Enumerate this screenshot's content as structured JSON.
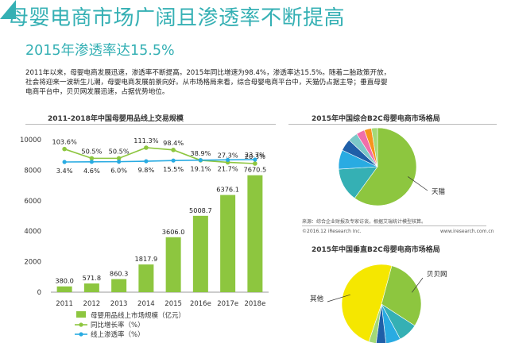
{
  "header": {
    "title": "母婴电商市场广阔且渗透率不断提高",
    "subtitle": "2015年渗透率达15.5%"
  },
  "body_text": [
    "2011年以来，母婴电商发展迅速，渗透率不断提高。2015年同比增速为98.4%，渗透率达15.5%。随着二胎政策开放，",
    "社会将迎来一波新生儿潮，母婴电商发展前景向好。从市场格局来看，综合母婴电商平台中，天猫仍占据主导；垂直母婴",
    "电商平台中，贝贝网发展迅速，占据优势地位。"
  ],
  "footer": {
    "source": "来源：综合企业财报及专家访谈，根据艾瑞统计模型核算。",
    "copyright": "©2016.12 iResearch Inc.",
    "website": "www.iresearch.com.cn"
  },
  "colors": {
    "bar": "#8dc63f",
    "growth": "#8dc63f",
    "penetration": "#29abe2",
    "title": "#35b0b4",
    "vertical_yellow": "#f5e700"
  },
  "chart_data": [
    {
      "type": "bar",
      "title": "2011-2018年中国母婴用品线上交易规模",
      "categories": [
        "2011",
        "2012",
        "2013",
        "2014",
        "2015",
        "2016e",
        "2017e",
        "2018e"
      ],
      "ylim": [
        0,
        10000
      ],
      "yticks": [
        "0",
        "2000",
        "4000",
        "6000",
        "8000",
        "10000"
      ],
      "grid": false,
      "legend_position": "bottom",
      "series": [
        {
          "name": "母婴用品线上市场规模（亿元）",
          "kind": "bar",
          "values": [
            380.0,
            571.8,
            860.3,
            1817.9,
            3606.0,
            5008.7,
            6376.1,
            7670.5
          ],
          "labels": [
            "380.0",
            "571.8",
            "860.3",
            "1817.9",
            "3606.0",
            "5008.7",
            "6376.1",
            "7670.5"
          ]
        },
        {
          "name": "同比增长率（%）",
          "kind": "line",
          "values": [
            103.6,
            50.5,
            50.5,
            111.3,
            98.4,
            38.9,
            27.3,
            20.3
          ],
          "labels": [
            "103.6%",
            "50.5%",
            "50.5%",
            "111.3%",
            "98.4%",
            "38.9%",
            "27.3%",
            "20.3%"
          ]
        },
        {
          "name": "线上渗透率（%）",
          "kind": "line",
          "values": [
            3.4,
            4.6,
            6.0,
            9.8,
            15.5,
            19.1,
            21.7,
            23.7
          ],
          "labels": [
            "3.4%",
            "4.6%",
            "6.0%",
            "9.8%",
            "15.5%",
            "19.1%",
            "21.7%",
            "23.7%"
          ]
        }
      ]
    },
    {
      "type": "pie",
      "title": "2015年中国综合B2C母婴电商市场格局",
      "slices": [
        {
          "label": "天猫",
          "value": 60,
          "color": "#8dc63f"
        },
        {
          "label": "",
          "value": 14,
          "color": "#35b0b4"
        },
        {
          "label": "",
          "value": 8,
          "color": "#29abe2"
        },
        {
          "label": "",
          "value": 5,
          "color": "#1f5fa8"
        },
        {
          "label": "",
          "value": 4,
          "color": "#7bc8c8"
        },
        {
          "label": "",
          "value": 3.5,
          "color": "#f06eaa"
        },
        {
          "label": "",
          "value": 3,
          "color": "#f7941d"
        },
        {
          "label": "",
          "value": 2.5,
          "color": "#a3d977"
        }
      ]
    },
    {
      "type": "pie",
      "title": "2015年中国垂直B2C母婴电商市场格局",
      "slices": [
        {
          "label": "贝贝网",
          "value": 30,
          "color": "#8dc63f"
        },
        {
          "label": "",
          "value": 8,
          "color": "#35b0b4"
        },
        {
          "label": "",
          "value": 6,
          "color": "#29abe2"
        },
        {
          "label": "",
          "value": 4,
          "color": "#1f5fa8"
        },
        {
          "label": "",
          "value": 3,
          "color": "#a3d977"
        },
        {
          "label": "其他",
          "value": 49,
          "color": "#f5e700"
        }
      ]
    }
  ]
}
